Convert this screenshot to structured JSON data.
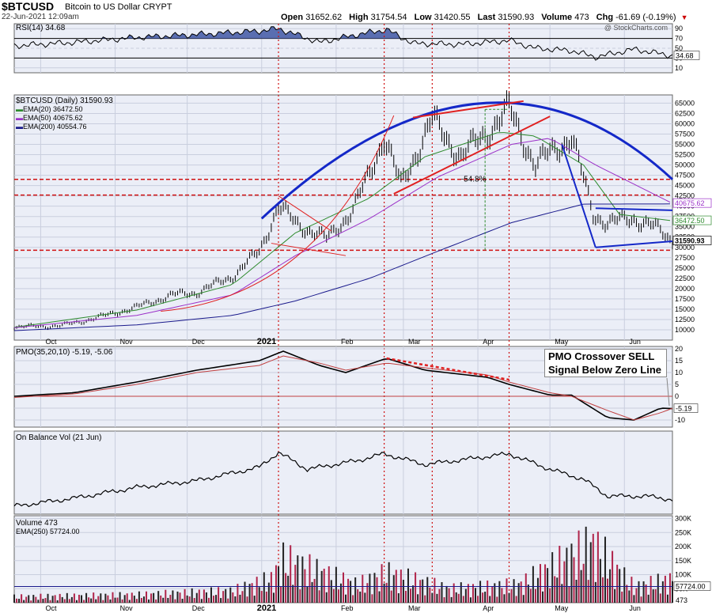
{
  "header": {
    "symbol": "$BTCUSD",
    "name": "Bitcoin to US Dollar",
    "exchange": "CRYPT",
    "datetime": "22-Jun-2021 12:09am",
    "open_label": "Open",
    "open": "31652.62",
    "high_label": "High",
    "high": "31754.54",
    "low_label": "Low",
    "low": "31420.55",
    "last_label": "Last",
    "last": "31590.93",
    "volume_label": "Volume",
    "volume": "473",
    "chg_label": "Chg",
    "chg": "-61.69 (-0.19%)",
    "credit": "@ StockCharts.com"
  },
  "colors": {
    "ema20": "#2e8b2e",
    "ema50": "#9b30c8",
    "ema200": "#1a1a8c",
    "trend_blue": "#1428c8",
    "trend_red": "#e02020",
    "price": "#000000",
    "pmo_signal": "#c04040",
    "vol_up": "#222222",
    "vol_down": "#b0244a"
  },
  "chart_data": [
    {
      "type": "line",
      "panel": "RSI",
      "legend": "RSI(14) 34.68",
      "y_ticks": [
        90,
        70,
        50,
        30,
        10
      ],
      "ylim": [
        0,
        100
      ],
      "last_value": "34.68",
      "x": [
        "2020-09-20",
        "2020-10-15",
        "2020-11-10",
        "2020-12-05",
        "2020-12-31",
        "2021-01-08",
        "2021-01-25",
        "2021-02-10",
        "2021-02-22",
        "2021-03-05",
        "2021-03-25",
        "2021-04-14",
        "2021-04-25",
        "2021-05-10",
        "2021-05-20",
        "2021-06-05",
        "2021-06-21"
      ],
      "values": [
        55,
        62,
        72,
        78,
        85,
        90,
        62,
        78,
        88,
        60,
        58,
        66,
        50,
        45,
        32,
        48,
        34.68
      ]
    },
    {
      "type": "line",
      "panel": "price",
      "legend": [
        "$BTCUSD (Daily) 31590.93",
        "EMA(20) 36472.50",
        "EMA(50) 40675.62",
        "EMA(200) 40554.76"
      ],
      "y_ticks": [
        65000,
        62500,
        60000,
        57500,
        55000,
        52500,
        50000,
        47500,
        45000,
        42500,
        40000,
        37500,
        35000,
        32500,
        30000,
        27500,
        25000,
        22500,
        20000,
        17500,
        15000,
        12500,
        10000
      ],
      "ylim": [
        7500,
        67000
      ],
      "x_ticks": [
        "Oct",
        "Nov",
        "Dec",
        "2021",
        "Feb",
        "Mar",
        "Apr",
        "May",
        "Jun"
      ],
      "annotations": [
        "-54.8%"
      ],
      "last_labels": {
        "price": "31590.93",
        "ema20": "36472.50",
        "ema50": "40675.62",
        "ema200": "40554.76"
      },
      "series": [
        {
          "name": "$BTCUSD (Daily)",
          "x": [
            "2020-09-20",
            "2020-10-10",
            "2020-10-25",
            "2020-11-10",
            "2020-11-25",
            "2020-12-05",
            "2020-12-20",
            "2020-12-31",
            "2021-01-08",
            "2021-01-15",
            "2021-01-28",
            "2021-02-08",
            "2021-02-15",
            "2021-02-21",
            "2021-02-28",
            "2021-03-13",
            "2021-03-25",
            "2021-04-05",
            "2021-04-14",
            "2021-04-25",
            "2021-05-10",
            "2021-05-19",
            "2021-05-25",
            "2021-06-05",
            "2021-06-12",
            "2021-06-21"
          ],
          "values": [
            10700,
            11000,
            13000,
            15500,
            18500,
            19000,
            23000,
            29000,
            40000,
            36000,
            32000,
            39000,
            48000,
            57000,
            45000,
            61000,
            52000,
            58000,
            63500,
            50000,
            57000,
            38000,
            36000,
            37000,
            35500,
            31590
          ]
        },
        {
          "name": "EMA(20)",
          "x": [
            "2020-09-20",
            "2020-11-10",
            "2020-12-20",
            "2021-01-15",
            "2021-02-15",
            "2021-03-10",
            "2021-04-10",
            "2021-04-25",
            "2021-05-15",
            "2021-05-30",
            "2021-06-21"
          ],
          "values": [
            10600,
            14800,
            21000,
            33500,
            42000,
            52000,
            58000,
            57000,
            50000,
            38000,
            36472
          ]
        },
        {
          "name": "EMA(50)",
          "x": [
            "2020-09-20",
            "2020-11-10",
            "2020-12-20",
            "2021-01-15",
            "2021-02-15",
            "2021-03-15",
            "2021-04-15",
            "2021-05-01",
            "2021-05-20",
            "2021-06-21"
          ],
          "values": [
            10500,
            13500,
            18500,
            28000,
            37000,
            47000,
            55000,
            56500,
            50000,
            40675
          ]
        },
        {
          "name": "EMA(200)",
          "x": [
            "2020-09-20",
            "2020-11-10",
            "2020-12-20",
            "2021-01-15",
            "2021-02-15",
            "2021-03-15",
            "2021-04-15",
            "2021-05-15",
            "2021-06-21"
          ],
          "values": [
            9800,
            11200,
            13500,
            17000,
            22500,
            29000,
            36000,
            40500,
            40554
          ]
        }
      ]
    },
    {
      "type": "line",
      "panel": "PMO",
      "legend": "PMO(35,20,10) -5.19, -5.06",
      "y_ticks": [
        20,
        15,
        10,
        5,
        0,
        -5,
        -10
      ],
      "ylim": [
        -13,
        21
      ],
      "last_value": "-5.19",
      "callout": [
        "PMO Crossover SELL",
        "Signal Below Zero Line"
      ],
      "series": [
        {
          "name": "PMO",
          "x": [
            "2020-09-20",
            "2020-10-15",
            "2020-11-10",
            "2020-12-05",
            "2020-12-31",
            "2021-01-10",
            "2021-01-25",
            "2021-02-05",
            "2021-02-22",
            "2021-03-10",
            "2021-04-05",
            "2021-04-14",
            "2021-05-01",
            "2021-05-10",
            "2021-05-25",
            "2021-06-05",
            "2021-06-16",
            "2021-06-21"
          ],
          "values": [
            0,
            1.5,
            6,
            11,
            15,
            19,
            13,
            10,
            16,
            11,
            8,
            5,
            0.5,
            0.5,
            -9,
            -10,
            -5,
            -5.19
          ]
        },
        {
          "name": "Signal",
          "x": [
            "2020-09-20",
            "2020-10-15",
            "2020-11-10",
            "2020-12-05",
            "2020-12-31",
            "2021-01-10",
            "2021-01-25",
            "2021-02-05",
            "2021-02-22",
            "2021-03-10",
            "2021-04-05",
            "2021-04-14",
            "2021-05-01",
            "2021-05-10",
            "2021-05-25",
            "2021-06-05",
            "2021-06-16",
            "2021-06-21"
          ],
          "values": [
            -0.5,
            1,
            5,
            10,
            13,
            17,
            14,
            11,
            14,
            12,
            9,
            6,
            1.5,
            0,
            -6,
            -10,
            -7,
            -5.06
          ]
        }
      ]
    },
    {
      "type": "line",
      "panel": "OBV",
      "legend": "On Balance Vol (21 Jun)",
      "x": [
        "2020-09-20",
        "2020-10-15",
        "2020-11-10",
        "2020-12-05",
        "2020-12-31",
        "2021-01-08",
        "2021-01-20",
        "2021-02-10",
        "2021-02-21",
        "2021-03-10",
        "2021-04-14",
        "2021-05-01",
        "2021-05-15",
        "2021-05-25",
        "2021-06-10",
        "2021-06-21"
      ],
      "values": [
        0,
        12,
        28,
        38,
        58,
        80,
        55,
        68,
        78,
        62,
        78,
        55,
        40,
        15,
        15,
        10
      ]
    },
    {
      "type": "bar",
      "panel": "volume",
      "legend": [
        "Volume 473",
        "EMA(250) 57724.00"
      ],
      "y_ticks": [
        "300K",
        "250K",
        "200K",
        "150K",
        "100K",
        "50K"
      ],
      "ylim": [
        0,
        310000
      ],
      "last_labels": {
        "ema": "57724.00",
        "volume": "473"
      },
      "x_ticks": [
        "Oct",
        "Nov",
        "Dec",
        "2021",
        "Feb",
        "Mar",
        "Apr",
        "May",
        "Jun"
      ],
      "profile": {
        "x": [
          "2020-09-20",
          "2020-11-10",
          "2020-12-20",
          "2021-01-05",
          "2021-01-10",
          "2021-02-10",
          "2021-02-22",
          "2021-03-20",
          "2021-04-18",
          "2021-05-19",
          "2021-06-05",
          "2021-06-21"
        ],
        "values": [
          30000,
          40000,
          60000,
          120000,
          220000,
          90000,
          150000,
          70000,
          90000,
          300000,
          80000,
          120000
        ]
      }
    }
  ]
}
